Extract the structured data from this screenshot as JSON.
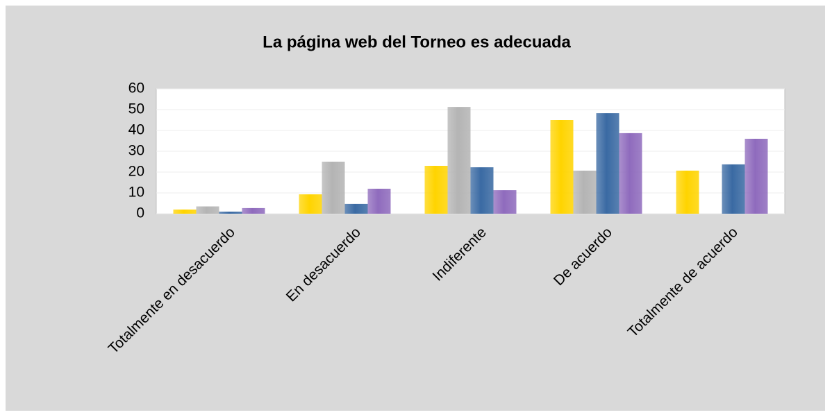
{
  "chart_data": {
    "type": "bar",
    "title": "La página web del Torneo es adecuada",
    "categories": [
      "Totalmente en desacuerdo",
      "En desacuerdo",
      "Indiferente",
      "De acuerdo",
      "Totalmente de acuerdo"
    ],
    "series": [
      {
        "color": "#ffd400",
        "values": [
          2,
          9.3,
          23,
          45,
          20.7
        ]
      },
      {
        "color": "#b4b4b4",
        "values": [
          3.5,
          25,
          51.3,
          20.7,
          0
        ]
      },
      {
        "color": "#3a6aa3",
        "values": [
          1,
          4.7,
          22.3,
          48.3,
          23.7
        ]
      },
      {
        "color": "#8f6bbd",
        "values": [
          2.7,
          12,
          11.3,
          38.7,
          36
        ]
      }
    ],
    "ylim": [
      0,
      60
    ],
    "yticks": [
      0,
      10,
      20,
      30,
      40,
      50,
      60
    ],
    "grid": true
  }
}
